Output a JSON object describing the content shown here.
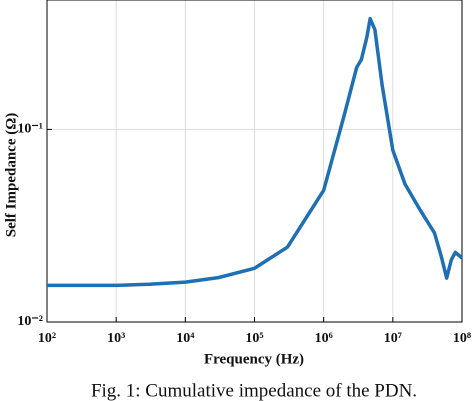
{
  "chart_data": {
    "type": "line",
    "x_label": "Frequency (Hz)",
    "y_label": "Self Impedance (Ω)",
    "caption": "Fig. 1: Cumulative impedance of the PDN.",
    "log_x": true,
    "log_y": true,
    "grid": true,
    "xlim": [
      100,
      100000000
    ],
    "ylim": [
      0.01,
      0.47
    ],
    "xticks": [
      {
        "value": 100,
        "label": "10²"
      },
      {
        "value": 1000,
        "label": "10³"
      },
      {
        "value": 10000,
        "label": "10⁴"
      },
      {
        "value": 100000,
        "label": "10⁵"
      },
      {
        "value": 1000000,
        "label": "10⁶"
      },
      {
        "value": 10000000,
        "label": "10⁷"
      },
      {
        "value": 100000000,
        "label": "10⁸"
      }
    ],
    "yticks": [
      {
        "value": 0.01,
        "label": "10⁻²"
      },
      {
        "value": 0.1,
        "label": "10⁻¹"
      }
    ],
    "x": [
      100,
      1000,
      3000,
      10000,
      30000,
      100000,
      300000,
      1000000,
      2000000,
      3000000,
      3500000,
      4200000,
      4700000,
      5500000,
      7000000,
      10000000,
      15000000,
      25000000,
      40000000,
      50000000,
      60000000,
      70000000,
      80000000,
      100000000
    ],
    "series": [
      {
        "color": "#1f6fb5",
        "values": [
          0.0155,
          0.0155,
          0.0157,
          0.0161,
          0.017,
          0.019,
          0.0245,
          0.0483,
          0.12,
          0.21,
          0.23,
          0.3,
          0.376,
          0.33,
          0.17,
          0.078,
          0.052,
          0.038,
          0.029,
          0.022,
          0.0169,
          0.021,
          0.023,
          0.0215
        ]
      }
    ]
  }
}
